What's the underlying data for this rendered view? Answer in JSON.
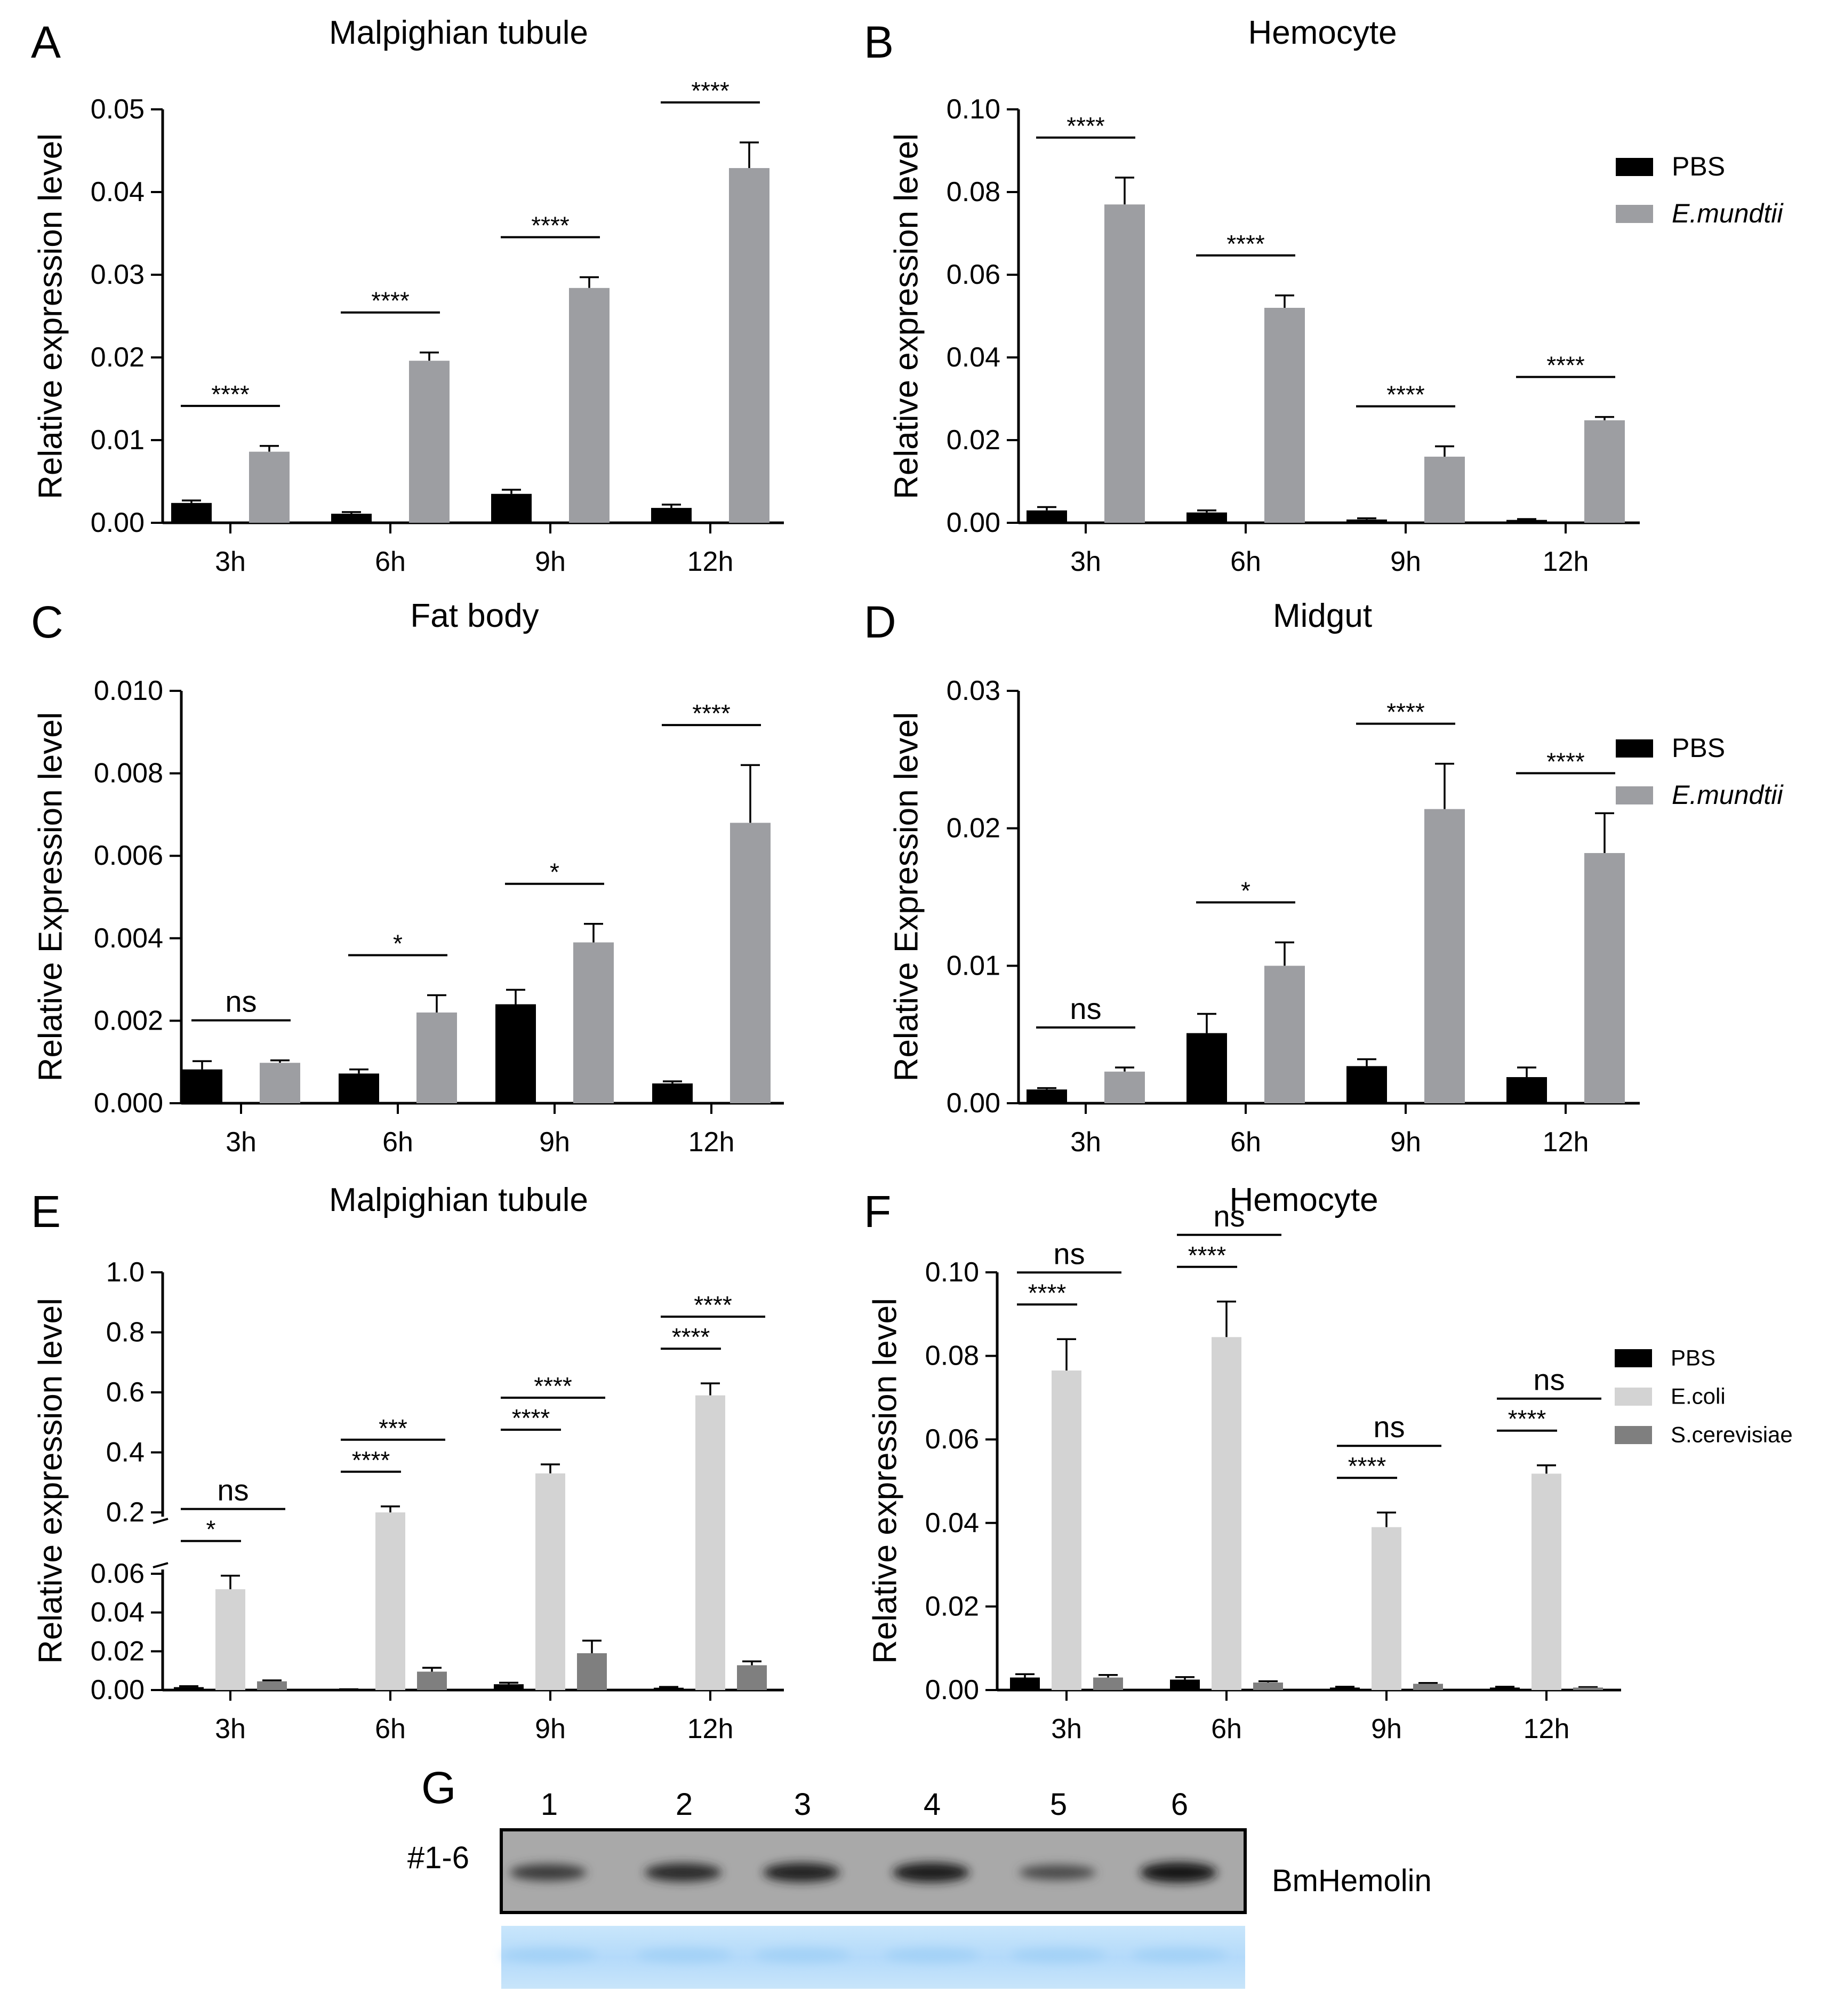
{
  "chart_data": [
    {
      "panel": "A",
      "type": "bar",
      "title": "Malpighian tubule",
      "ylabel": "Relative expression level",
      "ylim": [
        0,
        0.05
      ],
      "yticks": [
        "0.00",
        "0.01",
        "0.02",
        "0.03",
        "0.04",
        "0.05"
      ],
      "categories": [
        "3h",
        "6h",
        "9h",
        "12h"
      ],
      "series": [
        {
          "name": "PBS",
          "color": "#000000",
          "values": [
            0.0024,
            0.0011,
            0.0035,
            0.0018
          ],
          "errors": [
            0.0003,
            0.0002,
            0.0005,
            0.0004
          ]
        },
        {
          "name": "E.mundtii",
          "color": "#9d9ea2",
          "values": [
            0.0086,
            0.0196,
            0.0284,
            0.0429
          ],
          "errors": [
            0.0007,
            0.001,
            0.0013,
            0.0031
          ]
        }
      ],
      "significance": [
        {
          "label": "****",
          "category": 0
        },
        {
          "label": "****",
          "category": 1
        },
        {
          "label": "****",
          "category": 2
        },
        {
          "label": "****",
          "category": 3
        }
      ]
    },
    {
      "panel": "B",
      "type": "bar",
      "title": "Hemocyte",
      "ylabel": "Relative expression level",
      "ylim": [
        0,
        0.1
      ],
      "yticks": [
        "0.00",
        "0.02",
        "0.04",
        "0.06",
        "0.08",
        "0.10"
      ],
      "categories": [
        "3h",
        "6h",
        "9h",
        "12h"
      ],
      "series": [
        {
          "name": "PBS",
          "color": "#000000",
          "values": [
            0.003,
            0.0025,
            0.0008,
            0.0007
          ],
          "errors": [
            0.0008,
            0.0005,
            0.0003,
            0.0002
          ]
        },
        {
          "name": "E.mundtii",
          "color": "#9d9ea2",
          "values": [
            0.077,
            0.052,
            0.016,
            0.0248
          ],
          "errors": [
            0.0065,
            0.003,
            0.0025,
            0.0008
          ]
        }
      ],
      "significance": [
        {
          "label": "****",
          "category": 0
        },
        {
          "label": "****",
          "category": 1
        },
        {
          "label": "****",
          "category": 2
        },
        {
          "label": "****",
          "category": 3
        }
      ],
      "legend": {
        "position": "top-right",
        "entries": [
          "PBS",
          "E.mundtii"
        ]
      }
    },
    {
      "panel": "C",
      "type": "bar",
      "title": "Fat body",
      "ylabel": "Relative Expression level",
      "ylim": [
        0,
        0.01
      ],
      "yticks": [
        "0.000",
        "0.002",
        "0.004",
        "0.006",
        "0.008",
        "0.010"
      ],
      "categories": [
        "3h",
        "6h",
        "9h",
        "12h"
      ],
      "series": [
        {
          "name": "PBS",
          "color": "#000000",
          "values": [
            0.00082,
            0.00072,
            0.0024,
            0.00048
          ],
          "errors": [
            0.0002,
            0.0001,
            0.00035,
            5e-05
          ]
        },
        {
          "name": "E.mundtii",
          "color": "#9d9ea2",
          "values": [
            0.00098,
            0.0022,
            0.0039,
            0.0068
          ],
          "errors": [
            6e-05,
            0.00042,
            0.00045,
            0.0014
          ]
        }
      ],
      "significance": [
        {
          "label": "ns",
          "category": 0
        },
        {
          "label": "*",
          "category": 1
        },
        {
          "label": "*",
          "category": 2
        },
        {
          "label": "****",
          "category": 3
        }
      ]
    },
    {
      "panel": "D",
      "type": "bar",
      "title": "Midgut",
      "ylabel": "Relative Expression level",
      "ylim": [
        0,
        0.03
      ],
      "yticks": [
        "0.00",
        "0.01",
        "0.02",
        "0.03"
      ],
      "categories": [
        "3h",
        "6h",
        "9h",
        "12h"
      ],
      "series": [
        {
          "name": "PBS",
          "color": "#000000",
          "values": [
            0.001,
            0.0051,
            0.0027,
            0.0019
          ],
          "errors": [
            0.0001,
            0.0014,
            0.0005,
            0.0007
          ]
        },
        {
          "name": "E.mundtii",
          "color": "#9d9ea2",
          "values": [
            0.0023,
            0.01,
            0.0214,
            0.0182
          ],
          "errors": [
            0.0003,
            0.0017,
            0.0033,
            0.0029
          ]
        }
      ],
      "significance": [
        {
          "label": "ns",
          "category": 0
        },
        {
          "label": "*",
          "category": 1
        },
        {
          "label": "****",
          "category": 2
        },
        {
          "label": "****",
          "category": 3
        }
      ],
      "legend": {
        "position": "top-right",
        "entries": [
          "PBS",
          "E.mundtii"
        ]
      }
    },
    {
      "panel": "E",
      "type": "bar",
      "title": "Malpighian tubule",
      "ylabel": "Relative expression level",
      "axis_break": [
        0.06,
        0.2
      ],
      "yticks_lower": [
        "0.00",
        "0.02",
        "0.04",
        "0.06"
      ],
      "yticks_upper": [
        "0.2",
        "0.4",
        "0.6",
        "0.8",
        "1.0"
      ],
      "categories": [
        "3h",
        "6h",
        "9h",
        "12h"
      ],
      "series": [
        {
          "name": "PBS",
          "color": "#000000",
          "values": [
            0.0015,
            0.0003,
            0.003,
            0.0012
          ],
          "errors": [
            0.0005,
            0.0001,
            0.0008,
            0.0004
          ]
        },
        {
          "name": "E.coli",
          "color": "#d3d3d3",
          "values": [
            0.052,
            0.2,
            0.33,
            0.59
          ],
          "errors": [
            0.007,
            0.02,
            0.03,
            0.04
          ]
        },
        {
          "name": "S.cerevisiae",
          "color": "#7f7f7f",
          "values": [
            0.0045,
            0.0095,
            0.019,
            0.0128
          ],
          "errors": [
            0.0005,
            0.002,
            0.0065,
            0.002
          ]
        }
      ],
      "significance": [
        {
          "label": "*",
          "category": 0,
          "pair": "PBS-E.coli"
        },
        {
          "label": "ns",
          "category": 0,
          "pair": "PBS-S.cerevisiae"
        },
        {
          "label": "****",
          "category": 1,
          "pair": "PBS-E.coli"
        },
        {
          "label": "***",
          "category": 1,
          "pair": "PBS-S.cerevisiae"
        },
        {
          "label": "****",
          "category": 2,
          "pair": "PBS-E.coli"
        },
        {
          "label": "****",
          "category": 2,
          "pair": "PBS-S.cerevisiae"
        },
        {
          "label": "****",
          "category": 3,
          "pair": "PBS-E.coli"
        },
        {
          "label": "****",
          "category": 3,
          "pair": "PBS-S.cerevisiae"
        }
      ]
    },
    {
      "panel": "F",
      "type": "bar",
      "title": "Hemocyte",
      "ylabel": "Relative expression level",
      "ylim": [
        0,
        0.1
      ],
      "yticks": [
        "0.00",
        "0.02",
        "0.04",
        "0.06",
        "0.08",
        "0.10"
      ],
      "categories": [
        "3h",
        "6h",
        "9h",
        "12h"
      ],
      "series": [
        {
          "name": "PBS",
          "color": "#000000",
          "values": [
            0.003,
            0.0025,
            0.0006,
            0.0006
          ],
          "errors": [
            0.0008,
            0.0006,
            0.0002,
            0.0002
          ]
        },
        {
          "name": "E.coli",
          "color": "#d3d3d3",
          "values": [
            0.0765,
            0.0845,
            0.039,
            0.0518
          ],
          "errors": [
            0.0075,
            0.0085,
            0.0035,
            0.002
          ]
        },
        {
          "name": "S.cerevisiae",
          "color": "#7f7f7f",
          "values": [
            0.003,
            0.0018,
            0.0015,
            0.0006
          ],
          "errors": [
            0.0006,
            0.0003,
            0.0002,
            0.0001
          ]
        }
      ],
      "significance": [
        {
          "label": "****",
          "category": 0,
          "pair": "PBS-E.coli"
        },
        {
          "label": "ns",
          "category": 0,
          "pair": "PBS-S.cerevisiae"
        },
        {
          "label": "****",
          "category": 1,
          "pair": "PBS-E.coli"
        },
        {
          "label": "ns",
          "category": 1,
          "pair": "PBS-S.cerevisiae"
        },
        {
          "label": "****",
          "category": 2,
          "pair": "PBS-E.coli"
        },
        {
          "label": "ns",
          "category": 2,
          "pair": "PBS-S.cerevisiae"
        },
        {
          "label": "****",
          "category": 3,
          "pair": "PBS-E.coli"
        },
        {
          "label": "ns",
          "category": 3,
          "pair": "PBS-S.cerevisiae"
        }
      ],
      "legend": {
        "position": "top-right",
        "entries": [
          "PBS",
          "E.coli",
          "S.cerevisiae"
        ]
      }
    }
  ],
  "blot": {
    "panel": "G",
    "lanes": [
      "1",
      "2",
      "3",
      "4",
      "5",
      "6"
    ],
    "sample_label": "#1-6",
    "protein_label": "BmHemolin",
    "band_intensity": [
      0.55,
      0.72,
      0.8,
      0.85,
      0.4,
      0.92
    ]
  }
}
